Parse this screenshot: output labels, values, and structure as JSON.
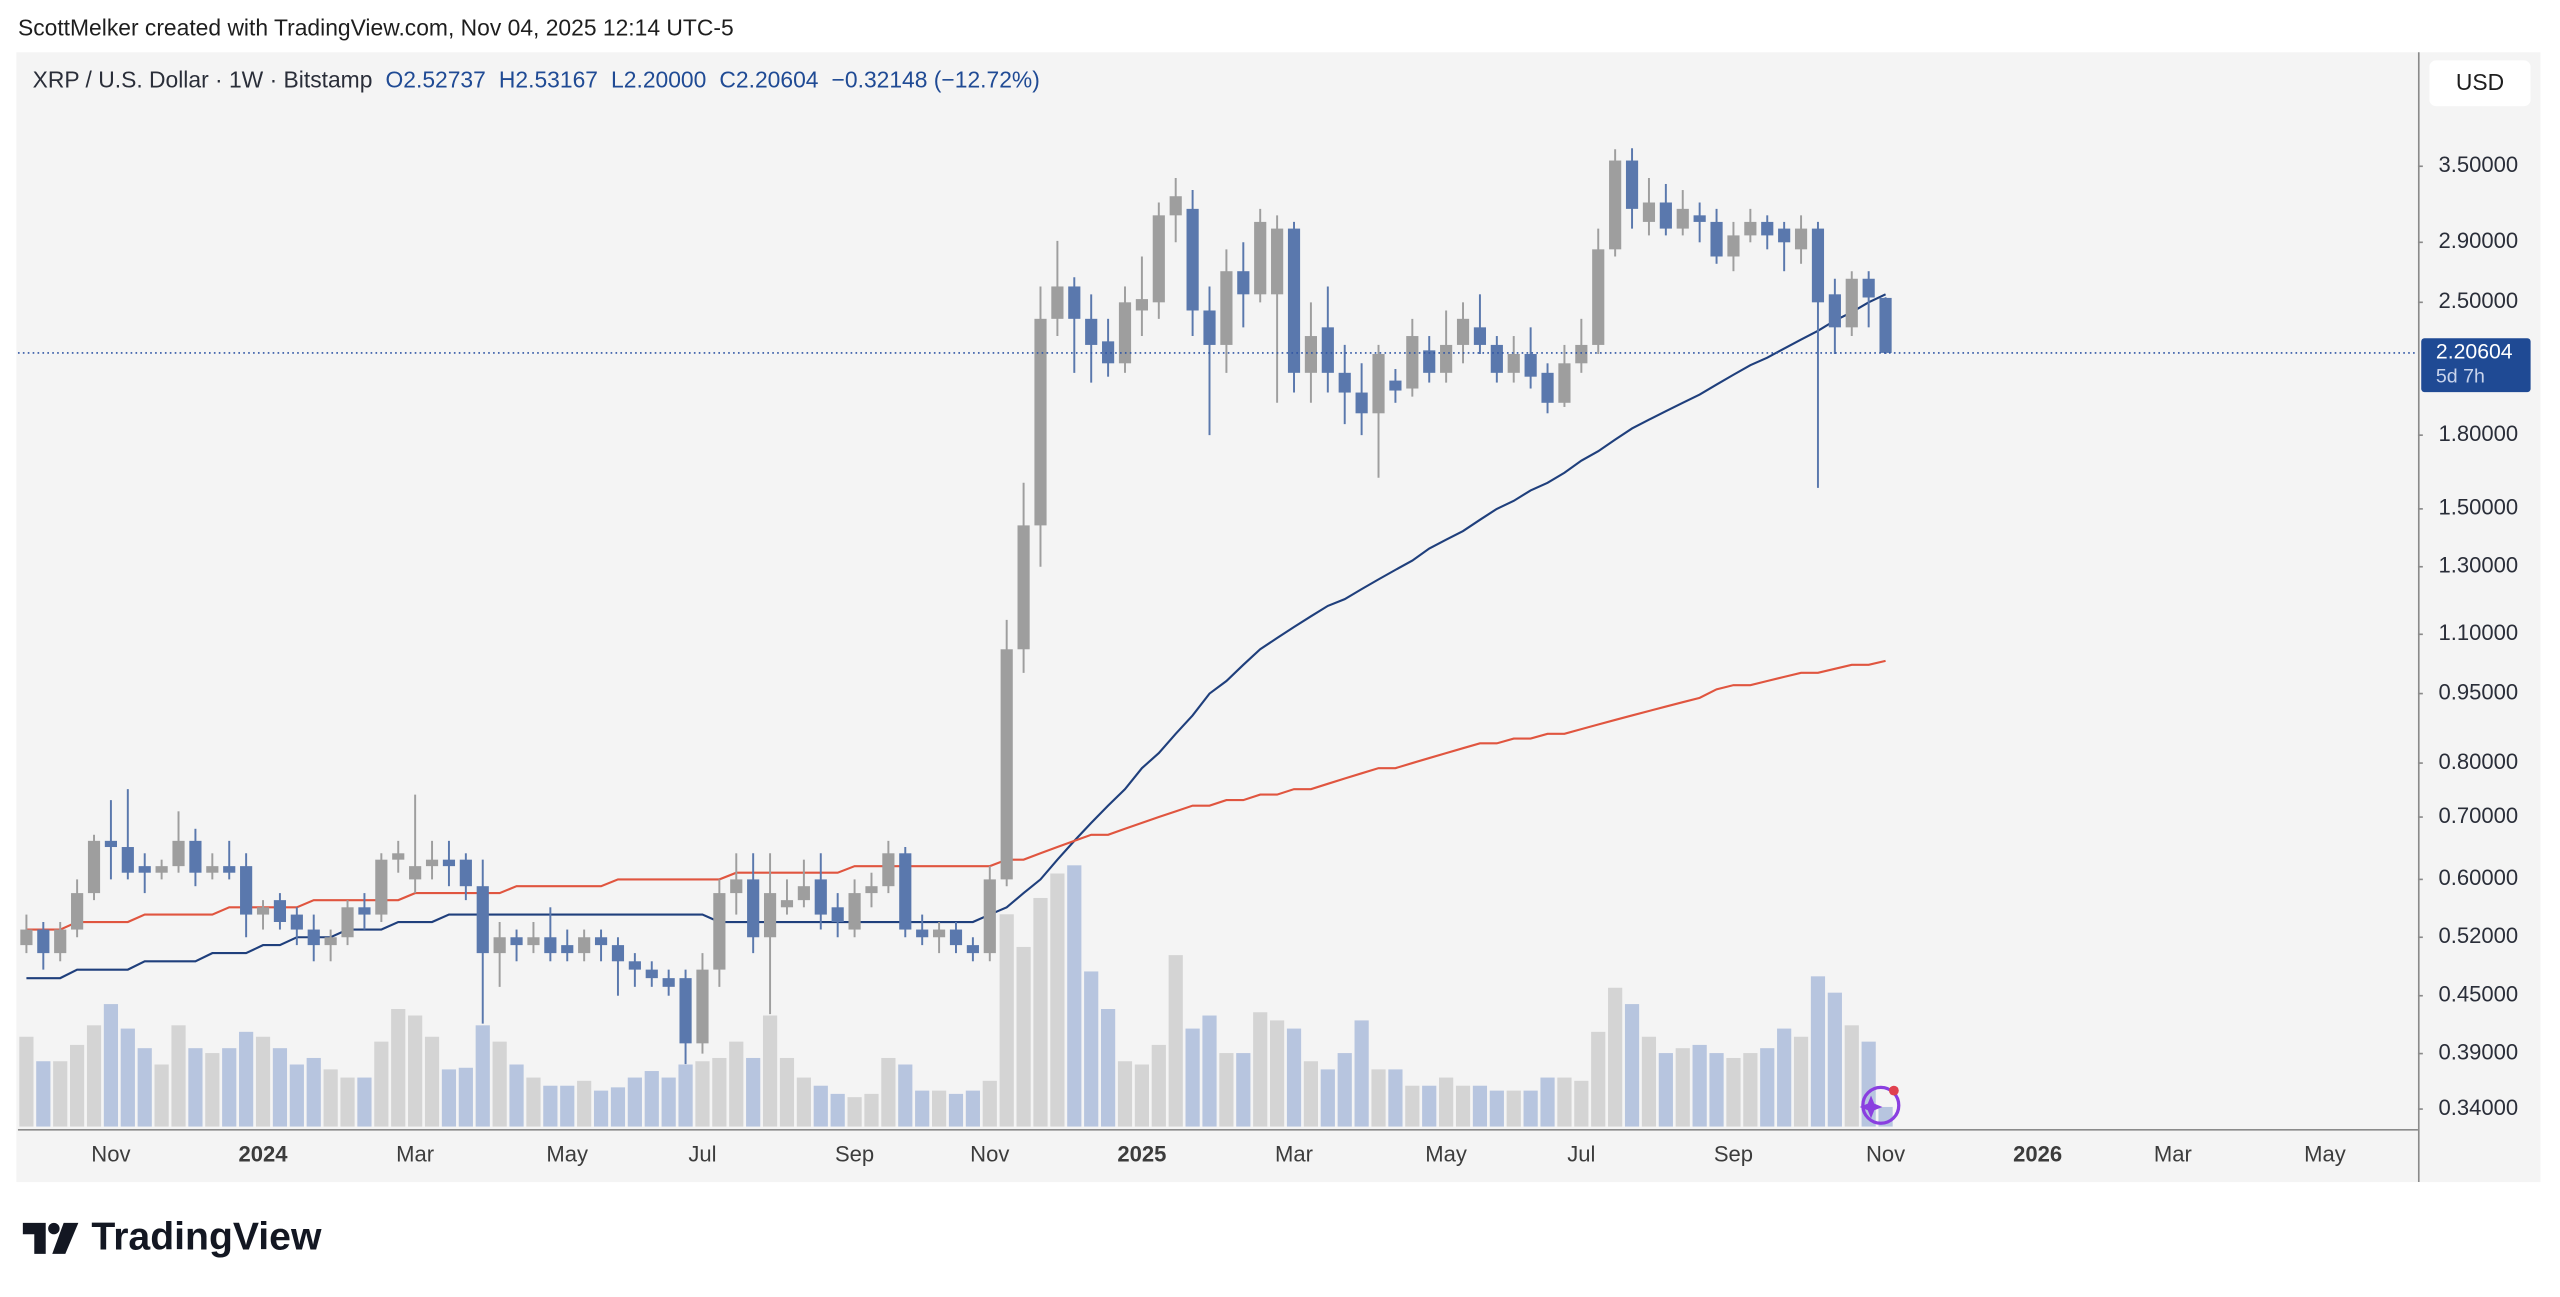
{
  "attribution": "ScottMelker created with TradingView.com, Nov 04, 2025 12:14 UTC-5",
  "brand": "TradingView",
  "chart_data": {
    "type": "candlestick",
    "title": "XRP / U.S. Dollar · 1W · Bitstamp",
    "header_values": [
      {
        "prefix": "O",
        "text": "2.52737"
      },
      {
        "prefix": "H",
        "text": "2.53167"
      },
      {
        "prefix": "L",
        "text": "2.20000"
      },
      {
        "prefix": "C",
        "text": "2.20604"
      }
    ],
    "change_text": "−0.32148 (−12.72%)",
    "currency": "USD",
    "categories": [
      null,
      null,
      null,
      null,
      null,
      "Nov",
      null,
      null,
      null,
      null,
      null,
      null,
      null,
      null,
      "2024",
      null,
      null,
      null,
      null,
      null,
      null,
      null,
      null,
      "Mar",
      null,
      null,
      null,
      null,
      null,
      null,
      null,
      null,
      "May",
      null,
      null,
      null,
      null,
      null,
      null,
      null,
      "Jul",
      null,
      null,
      null,
      null,
      null,
      null,
      null,
      null,
      "Sep",
      null,
      null,
      null,
      null,
      null,
      null,
      null,
      "Nov",
      null,
      null,
      null,
      null,
      null,
      null,
      null,
      null,
      "2025",
      null,
      null,
      null,
      null,
      null,
      null,
      null,
      null,
      "Mar",
      null,
      null,
      null,
      null,
      null,
      null,
      null,
      null,
      "May",
      null,
      null,
      null,
      null,
      null,
      null,
      null,
      "Jul",
      null,
      null,
      null,
      null,
      null,
      null,
      null,
      null,
      "Sep",
      null,
      null,
      null,
      null,
      null,
      null,
      null,
      null,
      "Nov",
      null,
      null,
      null,
      null,
      null,
      null,
      null,
      null,
      "2026",
      null,
      null,
      null,
      null,
      null,
      null,
      null,
      "Mar",
      null,
      null,
      null,
      null,
      null,
      null,
      null,
      null,
      "May",
      null,
      null,
      null,
      null,
      null
    ],
    "open": [
      0.51,
      0.53,
      0.5,
      0.53,
      0.58,
      0.66,
      0.65,
      0.62,
      0.61,
      0.62,
      0.66,
      0.61,
      0.62,
      0.62,
      0.55,
      0.57,
      0.55,
      0.53,
      0.51,
      0.52,
      0.56,
      0.55,
      0.63,
      0.6,
      0.62,
      0.63,
      0.63,
      0.59,
      0.5,
      0.52,
      0.51,
      0.52,
      0.51,
      0.5,
      0.52,
      0.51,
      0.49,
      0.48,
      0.47,
      0.47,
      0.4,
      0.48,
      0.58,
      0.6,
      0.52,
      0.56,
      0.57,
      0.6,
      0.56,
      0.53,
      0.58,
      0.59,
      0.64,
      0.53,
      0.52,
      0.53,
      0.51,
      0.5,
      0.6,
      1.06,
      1.44,
      2.4,
      2.6,
      2.4,
      2.27,
      2.15,
      2.45,
      2.5,
      3.1,
      3.15,
      2.45,
      2.25,
      2.7,
      2.55,
      2.55,
      3.0,
      2.1,
      2.35,
      2.1,
      2.0,
      1.9,
      2.06,
      2.02,
      2.22,
      2.1,
      2.25,
      2.35,
      2.25,
      2.1,
      2.2,
      2.1,
      1.95,
      2.15,
      2.25,
      2.85,
      3.55,
      3.05,
      3.2,
      3.0,
      3.1,
      3.05,
      2.8,
      2.95,
      3.05,
      3.0,
      2.85,
      3.0,
      2.55,
      2.35,
      2.65,
      2.52737,
      null,
      null,
      null,
      null,
      null,
      null,
      null,
      null,
      null,
      null,
      null,
      null,
      null,
      null,
      null,
      null,
      null,
      null,
      null,
      null,
      null,
      null,
      null,
      null,
      null,
      null,
      null,
      null,
      null,
      null,
      null
    ],
    "high": [
      0.55,
      0.54,
      0.54,
      0.6,
      0.67,
      0.73,
      0.75,
      0.64,
      0.63,
      0.71,
      0.68,
      0.64,
      0.66,
      0.64,
      0.57,
      0.58,
      0.56,
      0.55,
      0.53,
      0.57,
      0.58,
      0.64,
      0.66,
      0.74,
      0.66,
      0.66,
      0.64,
      0.63,
      0.54,
      0.53,
      0.54,
      0.56,
      0.53,
      0.53,
      0.53,
      0.52,
      0.5,
      0.49,
      0.48,
      0.48,
      0.5,
      0.6,
      0.64,
      0.64,
      0.64,
      0.6,
      0.63,
      0.64,
      0.58,
      0.6,
      0.61,
      0.66,
      0.65,
      0.55,
      0.54,
      0.54,
      0.52,
      0.62,
      1.14,
      1.6,
      2.6,
      2.91,
      2.66,
      2.55,
      2.4,
      2.6,
      2.8,
      3.2,
      3.4,
      3.3,
      2.6,
      2.85,
      2.9,
      3.15,
      3.1,
      3.05,
      2.5,
      2.6,
      2.25,
      2.15,
      2.25,
      2.12,
      2.4,
      2.3,
      2.45,
      2.5,
      2.55,
      2.3,
      2.3,
      2.35,
      2.15,
      2.25,
      2.4,
      3.0,
      3.65,
      3.66,
      3.4,
      3.35,
      3.3,
      3.2,
      3.15,
      3.05,
      3.15,
      3.1,
      3.05,
      3.1,
      3.05,
      2.65,
      2.7,
      2.7,
      2.53167,
      null,
      null,
      null,
      null,
      null,
      null,
      null,
      null,
      null,
      null,
      null,
      null,
      null,
      null,
      null,
      null,
      null,
      null,
      null,
      null,
      null,
      null,
      null,
      null,
      null,
      null,
      null,
      null,
      null,
      null,
      null
    ],
    "low": [
      0.5,
      0.48,
      0.49,
      0.52,
      0.57,
      0.6,
      0.6,
      0.58,
      0.6,
      0.61,
      0.59,
      0.6,
      0.6,
      0.52,
      0.53,
      0.53,
      0.51,
      0.49,
      0.49,
      0.51,
      0.53,
      0.54,
      0.61,
      0.58,
      0.6,
      0.59,
      0.57,
      0.42,
      0.46,
      0.49,
      0.5,
      0.49,
      0.49,
      0.49,
      0.49,
      0.45,
      0.46,
      0.46,
      0.45,
      0.38,
      0.39,
      0.46,
      0.55,
      0.5,
      0.43,
      0.55,
      0.56,
      0.53,
      0.52,
      0.52,
      0.56,
      0.58,
      0.52,
      0.51,
      0.5,
      0.5,
      0.49,
      0.49,
      0.59,
      1.0,
      1.3,
      2.3,
      2.1,
      2.05,
      2.08,
      2.1,
      2.3,
      2.4,
      2.9,
      2.3,
      1.8,
      2.1,
      2.35,
      2.5,
      1.95,
      2.0,
      1.95,
      2.0,
      1.85,
      1.8,
      1.62,
      1.95,
      1.98,
      2.05,
      2.05,
      2.15,
      2.2,
      2.05,
      2.05,
      2.02,
      1.9,
      1.93,
      2.1,
      2.2,
      2.8,
      3.0,
      2.95,
      2.95,
      2.95,
      2.9,
      2.75,
      2.7,
      2.9,
      2.85,
      2.7,
      2.75,
      1.58,
      2.2,
      2.3,
      2.35,
      2.2,
      null,
      null,
      null,
      null,
      null,
      null,
      null,
      null,
      null,
      null,
      null,
      null,
      null,
      null,
      null,
      null,
      null,
      null,
      null,
      null,
      null,
      null,
      null,
      null,
      null,
      null,
      null,
      null,
      null,
      null,
      null
    ],
    "close": [
      0.53,
      0.5,
      0.53,
      0.58,
      0.66,
      0.65,
      0.61,
      0.61,
      0.62,
      0.66,
      0.61,
      0.62,
      0.61,
      0.55,
      0.56,
      0.54,
      0.53,
      0.51,
      0.52,
      0.56,
      0.55,
      0.63,
      0.64,
      0.62,
      0.63,
      0.62,
      0.59,
      0.5,
      0.52,
      0.51,
      0.52,
      0.5,
      0.5,
      0.52,
      0.51,
      0.49,
      0.48,
      0.47,
      0.46,
      0.4,
      0.48,
      0.58,
      0.6,
      0.52,
      0.58,
      0.57,
      0.59,
      0.55,
      0.54,
      0.58,
      0.59,
      0.64,
      0.53,
      0.52,
      0.53,
      0.51,
      0.5,
      0.6,
      1.06,
      1.44,
      2.4,
      2.6,
      2.4,
      2.25,
      2.15,
      2.5,
      2.52,
      3.1,
      3.25,
      2.45,
      2.25,
      2.7,
      2.55,
      3.05,
      3.0,
      2.1,
      2.3,
      2.1,
      2.0,
      1.9,
      2.2,
      2.01,
      2.3,
      2.1,
      2.25,
      2.4,
      2.25,
      2.1,
      2.2,
      2.08,
      1.95,
      2.15,
      2.25,
      2.85,
      3.55,
      3.15,
      3.2,
      3.0,
      3.15,
      3.05,
      2.8,
      2.95,
      3.05,
      2.95,
      2.9,
      3.0,
      2.5,
      2.35,
      2.65,
      2.53,
      2.20604,
      null,
      null,
      null,
      null,
      null,
      null,
      null,
      null,
      null,
      null,
      null,
      null,
      null,
      null,
      null,
      null,
      null,
      null,
      null,
      null,
      null,
      null,
      null,
      null,
      null,
      null,
      null,
      null,
      null,
      null,
      null
    ],
    "up_color": "#9e9e9e",
    "down_color": "#5a78ad",
    "volume": {
      "up_color": "#d4d4d4",
      "down_color": "#b7c5df",
      "values": [
        55,
        40,
        40,
        50,
        62,
        75,
        60,
        48,
        38,
        62,
        48,
        45,
        48,
        58,
        55,
        48,
        38,
        42,
        35,
        30,
        30,
        52,
        72,
        68,
        55,
        35,
        36,
        62,
        52,
        38,
        30,
        25,
        25,
        28,
        22,
        24,
        30,
        34,
        30,
        38,
        40,
        42,
        52,
        42,
        68,
        42,
        30,
        25,
        20,
        18,
        20,
        42,
        38,
        22,
        22,
        20,
        22,
        28,
        130,
        110,
        140,
        155,
        160,
        95,
        72,
        40,
        38,
        50,
        105,
        60,
        68,
        45,
        45,
        70,
        65,
        60,
        40,
        35,
        45,
        65,
        35,
        35,
        25,
        25,
        30,
        25,
        25,
        22,
        22,
        22,
        30,
        30,
        28,
        58,
        85,
        75,
        55,
        45,
        48,
        50,
        45,
        42,
        45,
        48,
        60,
        55,
        92,
        82,
        62,
        52,
        12,
        null,
        null,
        null,
        null,
        null,
        null,
        null,
        null,
        null,
        null,
        null,
        null,
        null,
        null,
        null,
        null,
        null,
        null,
        null,
        null,
        null,
        null,
        null,
        null,
        null,
        null,
        null,
        null,
        null,
        null,
        null
      ]
    },
    "moving_averages": [
      {
        "color": "#1f3f7c",
        "values": [
          0.47,
          0.47,
          0.47,
          0.48,
          0.48,
          0.48,
          0.48,
          0.49,
          0.49,
          0.49,
          0.49,
          0.5,
          0.5,
          0.5,
          0.51,
          0.51,
          0.52,
          0.52,
          0.52,
          0.53,
          0.53,
          0.53,
          0.54,
          0.54,
          0.54,
          0.55,
          0.55,
          0.55,
          0.55,
          0.55,
          0.55,
          0.55,
          0.55,
          0.55,
          0.55,
          0.55,
          0.55,
          0.55,
          0.55,
          0.55,
          0.55,
          0.54,
          0.54,
          0.54,
          0.54,
          0.54,
          0.54,
          0.54,
          0.54,
          0.54,
          0.54,
          0.54,
          0.54,
          0.54,
          0.54,
          0.54,
          0.54,
          0.55,
          0.56,
          0.58,
          0.6,
          0.63,
          0.66,
          0.69,
          0.72,
          0.75,
          0.79,
          0.82,
          0.86,
          0.9,
          0.95,
          0.98,
          1.02,
          1.06,
          1.09,
          1.12,
          1.15,
          1.18,
          1.2,
          1.23,
          1.26,
          1.29,
          1.32,
          1.36,
          1.39,
          1.42,
          1.46,
          1.5,
          1.53,
          1.57,
          1.6,
          1.64,
          1.69,
          1.73,
          1.78,
          1.83,
          1.87,
          1.91,
          1.95,
          1.99,
          2.04,
          2.09,
          2.14,
          2.18,
          2.23,
          2.28,
          2.33,
          2.39,
          2.44,
          2.5,
          2.55,
          null,
          null,
          null,
          null,
          null,
          null,
          null,
          null,
          null,
          null,
          null,
          null,
          null,
          null,
          null,
          null,
          null,
          null,
          null,
          null,
          null,
          null,
          null,
          null,
          null,
          null,
          null,
          null,
          null,
          null,
          null
        ]
      },
      {
        "color": "#e0553f",
        "values": [
          0.53,
          0.53,
          0.53,
          0.54,
          0.54,
          0.54,
          0.54,
          0.55,
          0.55,
          0.55,
          0.55,
          0.55,
          0.56,
          0.56,
          0.56,
          0.56,
          0.56,
          0.57,
          0.57,
          0.57,
          0.57,
          0.57,
          0.57,
          0.58,
          0.58,
          0.58,
          0.58,
          0.58,
          0.58,
          0.59,
          0.59,
          0.59,
          0.59,
          0.59,
          0.59,
          0.6,
          0.6,
          0.6,
          0.6,
          0.6,
          0.6,
          0.6,
          0.61,
          0.61,
          0.61,
          0.61,
          0.61,
          0.61,
          0.61,
          0.62,
          0.62,
          0.62,
          0.62,
          0.62,
          0.62,
          0.62,
          0.62,
          0.62,
          0.63,
          0.63,
          0.64,
          0.65,
          0.66,
          0.67,
          0.67,
          0.68,
          0.69,
          0.7,
          0.71,
          0.72,
          0.72,
          0.73,
          0.73,
          0.74,
          0.74,
          0.75,
          0.75,
          0.76,
          0.77,
          0.78,
          0.79,
          0.79,
          0.8,
          0.81,
          0.82,
          0.83,
          0.84,
          0.84,
          0.85,
          0.85,
          0.86,
          0.86,
          0.87,
          0.88,
          0.89,
          0.9,
          0.91,
          0.92,
          0.93,
          0.94,
          0.96,
          0.97,
          0.97,
          0.98,
          0.99,
          1.0,
          1.0,
          1.01,
          1.02,
          1.02,
          1.03,
          null,
          null,
          null,
          null,
          null,
          null,
          null,
          null,
          null,
          null,
          null,
          null,
          null,
          null,
          null,
          null,
          null,
          null,
          null,
          null,
          null,
          null,
          null,
          null,
          null,
          null,
          null,
          null,
          null,
          null,
          null
        ]
      }
    ],
    "last_price": {
      "value": 2.20604,
      "label": "2.20604"
    },
    "countdown": "5d 7h",
    "ylim": [
      0.323,
      4.64
    ],
    "yscale": "log",
    "yticks": [
      {
        "value": 3.5,
        "label": "3.50000"
      },
      {
        "value": 2.9,
        "label": "2.90000"
      },
      {
        "value": 2.5,
        "label": "2.50000"
      },
      {
        "value": 1.8,
        "label": "1.80000"
      },
      {
        "value": 1.5,
        "label": "1.50000"
      },
      {
        "value": 1.3,
        "label": "1.30000"
      },
      {
        "value": 1.1,
        "label": "1.10000"
      },
      {
        "value": 0.95,
        "label": "0.95000"
      },
      {
        "value": 0.8,
        "label": "0.80000"
      },
      {
        "value": 0.7,
        "label": "0.70000"
      },
      {
        "value": 0.6,
        "label": "0.60000"
      },
      {
        "value": 0.52,
        "label": "0.52000"
      },
      {
        "value": 0.45,
        "label": "0.45000"
      },
      {
        "value": 0.39,
        "label": "0.39000"
      },
      {
        "value": 0.34,
        "label": "0.34000"
      }
    ]
  }
}
